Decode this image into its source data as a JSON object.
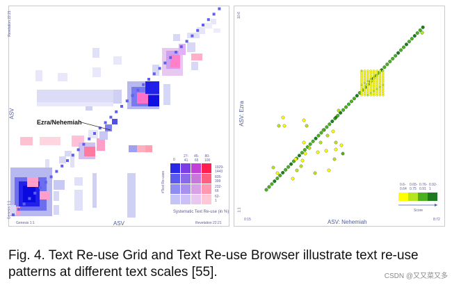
{
  "left_chart": {
    "title_ylabel": "ASV",
    "xlabel": "ASV",
    "corner_bottom_left_x": "Genesis 1:1",
    "corner_bottom_left_y": "Genesis 1:1",
    "corner_top_left_y": "Revelation 22:21",
    "corner_bottom_right_x": "Revelation 22:21",
    "annotation": "Ezra/Nehemiah",
    "legend": {
      "col_headers": [
        "0",
        "27-\n41",
        "45-\n65",
        "80-\n100"
      ],
      "row_labels": [
        "1929-\n1443",
        "835-\n399",
        "232-\n66",
        "62-\n1"
      ],
      "ylabel": "#Text Re-uses",
      "xlabel": "Systematic Text Re-use (in %)"
    }
  },
  "right_chart": {
    "ylabel": "ASV: Ezra",
    "xlabel": "ASV: Nehemiah",
    "x_start": "0:15",
    "x_end": "8:72",
    "y_start": "1:1",
    "y_end": "10:6",
    "legend": {
      "bins": [
        "0.6-\n0.64",
        "0.65-\n0.75",
        "0.76-\n0.91",
        "0.92-\n1"
      ],
      "colors": [
        "#ffff00",
        "#b5e61d",
        "#4caf1e",
        "#1e7a20"
      ],
      "label": "Score"
    }
  },
  "caption": "Fig. 4. Text Re-use Grid and Text Re-use Browser illustrate text re-use patterns at different text scales [55].",
  "watermark": "CSDN @又又菜又多"
}
